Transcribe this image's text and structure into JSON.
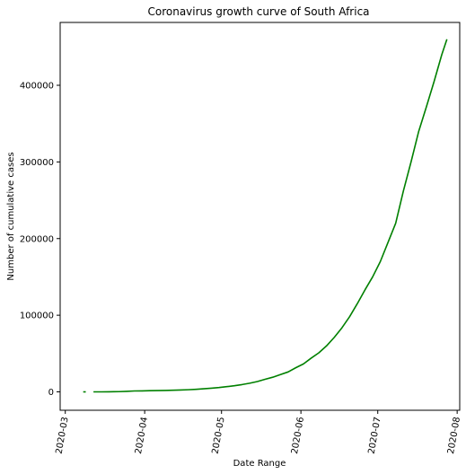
{
  "chart_data": {
    "type": "line",
    "title": "Coronavirus growth curve of South Africa",
    "xlabel": "Date Range",
    "ylabel": "Number of cumulative cases",
    "x_type": "date",
    "xlim": [
      "2020-02-28",
      "2020-08-02"
    ],
    "ylim": [
      -24000,
      482000
    ],
    "grid": false,
    "legend": "none",
    "x_ticks": [
      "2020-03",
      "2020-04",
      "2020-05",
      "2020-06",
      "2020-07",
      "2020-08"
    ],
    "y_ticks": [
      {
        "value": 0,
        "label": "0"
      },
      {
        "value": 100000,
        "label": "100000"
      },
      {
        "value": 200000,
        "label": "200000"
      },
      {
        "value": 300000,
        "label": "300000"
      },
      {
        "value": 400000,
        "label": "400000"
      }
    ],
    "colors": {
      "line": "#008000",
      "axes": "#000000",
      "background": "#ffffff"
    },
    "series": [
      {
        "name": "",
        "x": [
          "2020-03-08",
          "2020-03-09",
          "2020-03-11",
          "2020-03-12",
          "2020-03-15",
          "2020-03-18",
          "2020-03-20",
          "2020-03-22",
          "2020-03-25",
          "2020-03-28",
          "2020-03-31",
          "2020-04-03",
          "2020-04-06",
          "2020-04-09",
          "2020-04-12",
          "2020-04-15",
          "2020-04-18",
          "2020-04-21",
          "2020-04-24",
          "2020-04-27",
          "2020-04-30",
          "2020-05-03",
          "2020-05-06",
          "2020-05-09",
          "2020-05-12",
          "2020-05-15",
          "2020-05-18",
          "2020-05-21",
          "2020-05-24",
          "2020-05-27",
          "2020-05-30",
          "2020-06-02",
          "2020-06-05",
          "2020-06-08",
          "2020-06-11",
          "2020-06-14",
          "2020-06-17",
          "2020-06-20",
          "2020-06-23",
          "2020-06-26",
          "2020-06-29",
          "2020-07-02",
          "2020-07-05",
          "2020-07-08",
          "2020-07-11",
          "2020-07-14",
          "2020-07-17",
          "2020-07-20",
          "2020-07-23",
          "2020-07-26",
          "2020-07-28"
        ],
        "y": [
          0,
          0,
          null,
          0,
          0,
          100,
          200,
          300,
          700,
          1200,
          1300,
          1500,
          1700,
          1900,
          2100,
          2400,
          2800,
          3300,
          4000,
          4800,
          5600,
          6800,
          8000,
          9500,
          11300,
          13500,
          16400,
          19100,
          22600,
          26000,
          31500,
          36500,
          44000,
          51000,
          60000,
          71000,
          83500,
          98000,
          115000,
          133000,
          150000,
          170000,
          195000,
          220000,
          262000,
          300000,
          340000,
          372000,
          405000,
          440000,
          460000
        ]
      }
    ]
  }
}
